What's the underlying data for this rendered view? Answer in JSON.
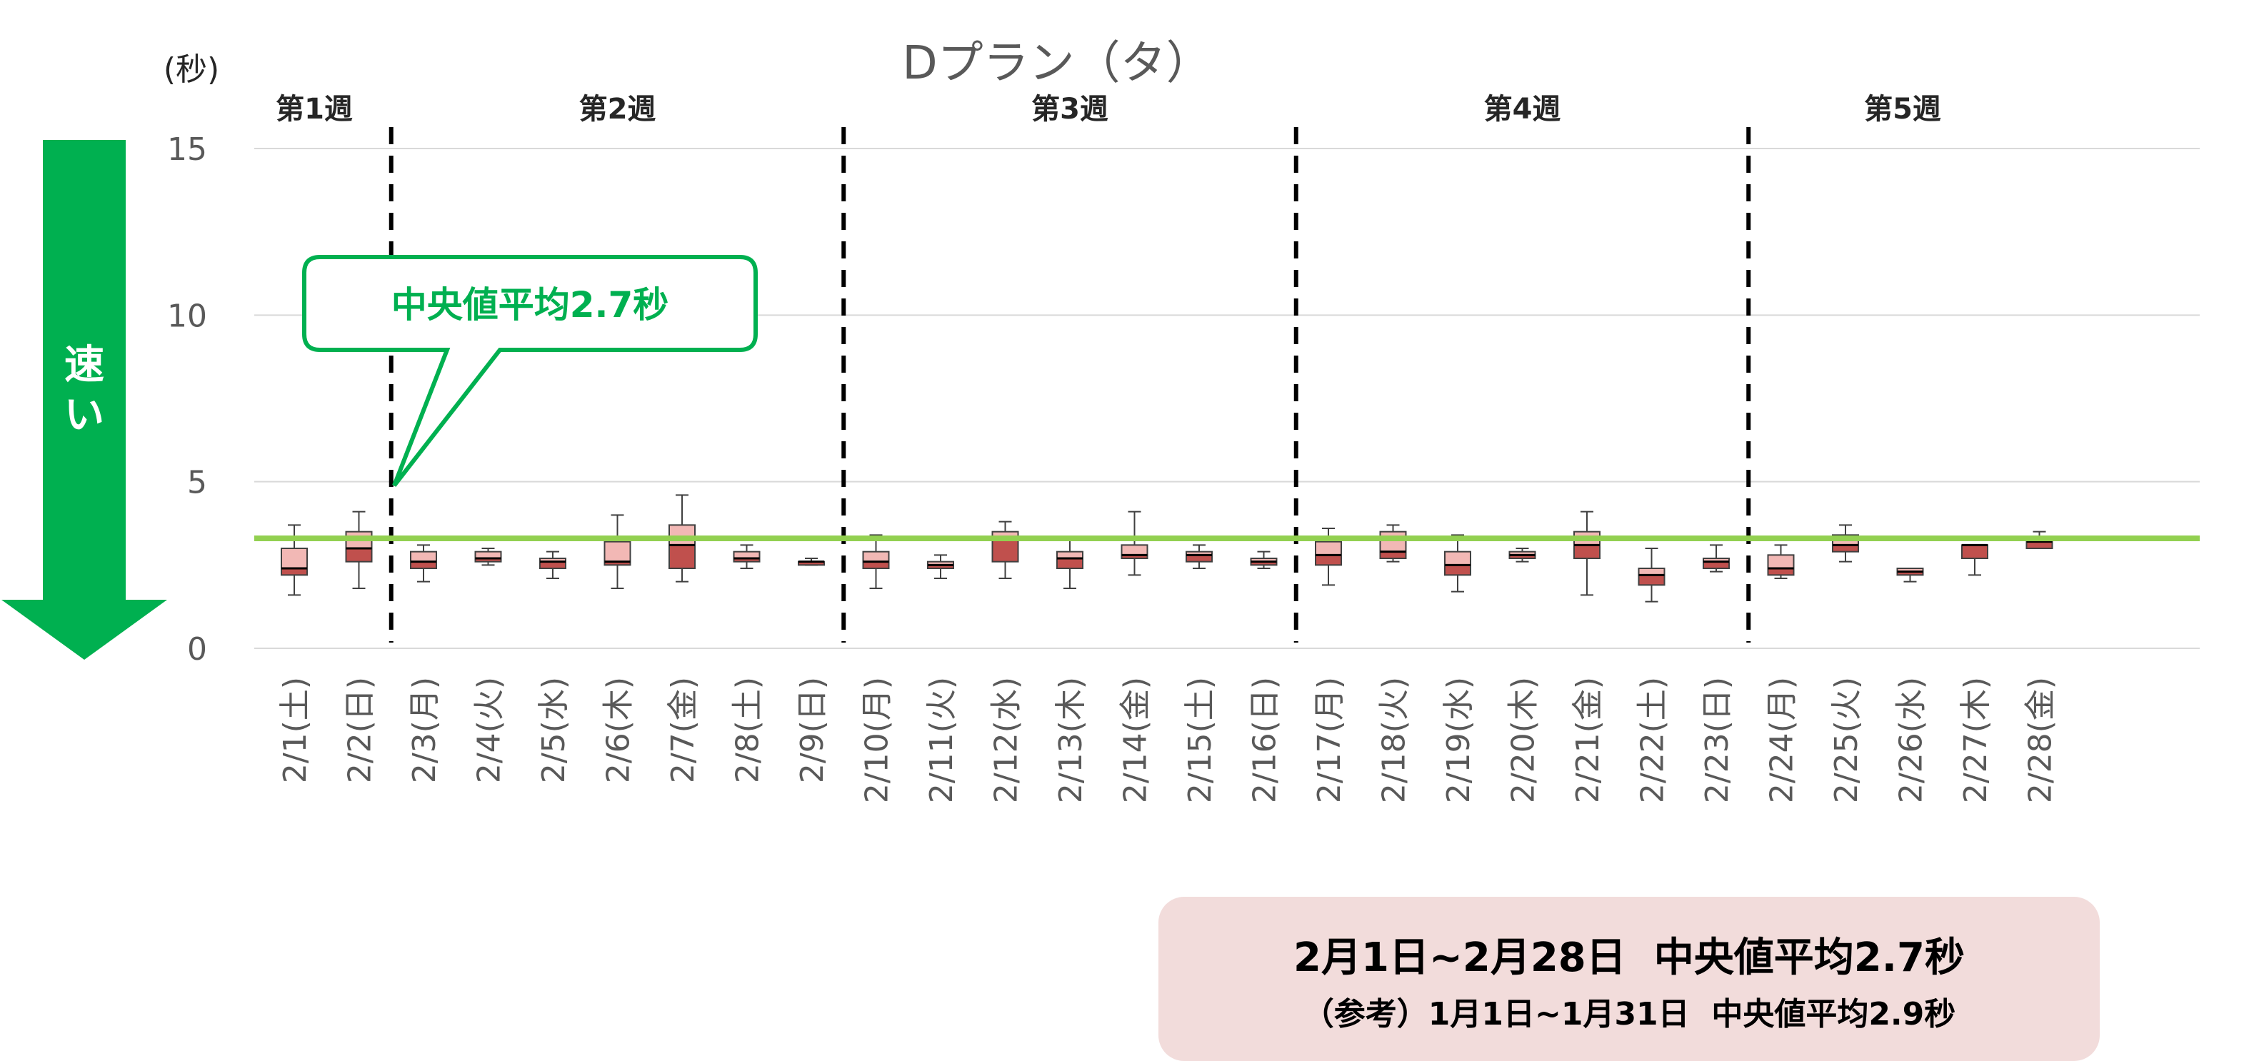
{
  "unit_label": "(秒)",
  "arrow_label": [
    "速",
    "い"
  ],
  "callout": "中央値平均2.7秒",
  "summary": {
    "main": "2月1日~2月28日  中央値平均2.7秒",
    "reference": "（参考）1月1日~1月31日  中央値平均2.9秒"
  },
  "colors": {
    "box_low": "#f2b8b5",
    "box_high": "#c0504d",
    "box_outline": "#404040",
    "reference_line": "#92d050",
    "arrow": "#00b050",
    "callout_border": "#00b050",
    "gridline": "#d9d9d9",
    "divider": "#000000"
  },
  "chart_data": {
    "type": "box",
    "title": "Dプラン（タ）",
    "ylabel": "(秒)",
    "ylim": [
      0,
      15
    ],
    "yticks": [
      0,
      5,
      10,
      15
    ],
    "grid": true,
    "reference_line": 3.3,
    "weeks": [
      {
        "label": "第1週",
        "days": 2
      },
      {
        "label": "第2週",
        "days": 7
      },
      {
        "label": "第3週",
        "days": 7
      },
      {
        "label": "第4週",
        "days": 7
      },
      {
        "label": "第5週",
        "days": 5
      }
    ],
    "boxes": [
      {
        "label": "2/1(土)",
        "min": 1.6,
        "q1": 2.2,
        "median": 2.4,
        "q3": 3.0,
        "max": 3.7
      },
      {
        "label": "2/2(日)",
        "min": 1.8,
        "q1": 2.6,
        "median": 3.0,
        "q3": 3.5,
        "max": 4.1
      },
      {
        "label": "2/3(月)",
        "min": 2.0,
        "q1": 2.4,
        "median": 2.6,
        "q3": 2.9,
        "max": 3.1
      },
      {
        "label": "2/4(火)",
        "min": 2.5,
        "q1": 2.6,
        "median": 2.7,
        "q3": 2.9,
        "max": 3.0
      },
      {
        "label": "2/5(水)",
        "min": 2.1,
        "q1": 2.4,
        "median": 2.6,
        "q3": 2.7,
        "max": 2.9
      },
      {
        "label": "2/6(木)",
        "min": 1.8,
        "q1": 2.5,
        "median": 2.6,
        "q3": 3.2,
        "max": 4.0
      },
      {
        "label": "2/7(金)",
        "min": 2.0,
        "q1": 2.4,
        "median": 3.1,
        "q3": 3.7,
        "max": 4.6
      },
      {
        "label": "2/8(土)",
        "min": 2.4,
        "q1": 2.6,
        "median": 2.7,
        "q3": 2.9,
        "max": 3.1
      },
      {
        "label": "2/9(日)",
        "min": 2.5,
        "q1": 2.5,
        "median": 2.6,
        "q3": 2.6,
        "max": 2.7
      },
      {
        "label": "2/10(月)",
        "min": 1.8,
        "q1": 2.4,
        "median": 2.6,
        "q3": 2.9,
        "max": 3.4
      },
      {
        "label": "2/11(火)",
        "min": 2.1,
        "q1": 2.4,
        "median": 2.5,
        "q3": 2.6,
        "max": 2.8
      },
      {
        "label": "2/12(水)",
        "min": 2.1,
        "q1": 2.6,
        "median": 3.3,
        "q3": 3.5,
        "max": 3.8
      },
      {
        "label": "2/13(木)",
        "min": 1.8,
        "q1": 2.4,
        "median": 2.7,
        "q3": 2.9,
        "max": 3.3
      },
      {
        "label": "2/14(金)",
        "min": 2.2,
        "q1": 2.7,
        "median": 2.8,
        "q3": 3.1,
        "max": 4.1
      },
      {
        "label": "2/15(土)",
        "min": 2.4,
        "q1": 2.6,
        "median": 2.8,
        "q3": 2.9,
        "max": 3.1
      },
      {
        "label": "2/16(日)",
        "min": 2.4,
        "q1": 2.5,
        "median": 2.6,
        "q3": 2.7,
        "max": 2.9
      },
      {
        "label": "2/17(月)",
        "min": 1.9,
        "q1": 2.5,
        "median": 2.8,
        "q3": 3.2,
        "max": 3.6
      },
      {
        "label": "2/18(火)",
        "min": 2.6,
        "q1": 2.7,
        "median": 2.9,
        "q3": 3.5,
        "max": 3.7
      },
      {
        "label": "2/19(水)",
        "min": 1.7,
        "q1": 2.2,
        "median": 2.5,
        "q3": 2.9,
        "max": 3.4
      },
      {
        "label": "2/20(木)",
        "min": 2.6,
        "q1": 2.7,
        "median": 2.8,
        "q3": 2.9,
        "max": 3.0
      },
      {
        "label": "2/21(金)",
        "min": 1.6,
        "q1": 2.7,
        "median": 3.1,
        "q3": 3.5,
        "max": 4.1
      },
      {
        "label": "2/22(土)",
        "min": 1.4,
        "q1": 1.9,
        "median": 2.2,
        "q3": 2.4,
        "max": 3.0
      },
      {
        "label": "2/23(日)",
        "min": 2.3,
        "q1": 2.4,
        "median": 2.6,
        "q3": 2.7,
        "max": 3.1
      },
      {
        "label": "2/24(月)",
        "min": 2.1,
        "q1": 2.2,
        "median": 2.4,
        "q3": 2.8,
        "max": 3.1
      },
      {
        "label": "2/25(火)",
        "min": 2.6,
        "q1": 2.9,
        "median": 3.1,
        "q3": 3.4,
        "max": 3.7
      },
      {
        "label": "2/26(水)",
        "min": 2.0,
        "q1": 2.2,
        "median": 2.3,
        "q3": 2.4,
        "max": 2.4
      },
      {
        "label": "2/27(木)",
        "min": 2.2,
        "q1": 2.7,
        "median": 3.1,
        "q3": 3.1,
        "max": 3.1
      },
      {
        "label": "2/28(金)",
        "min": 3.0,
        "q1": 3.0,
        "median": 3.2,
        "q3": 3.2,
        "max": 3.5
      }
    ]
  }
}
